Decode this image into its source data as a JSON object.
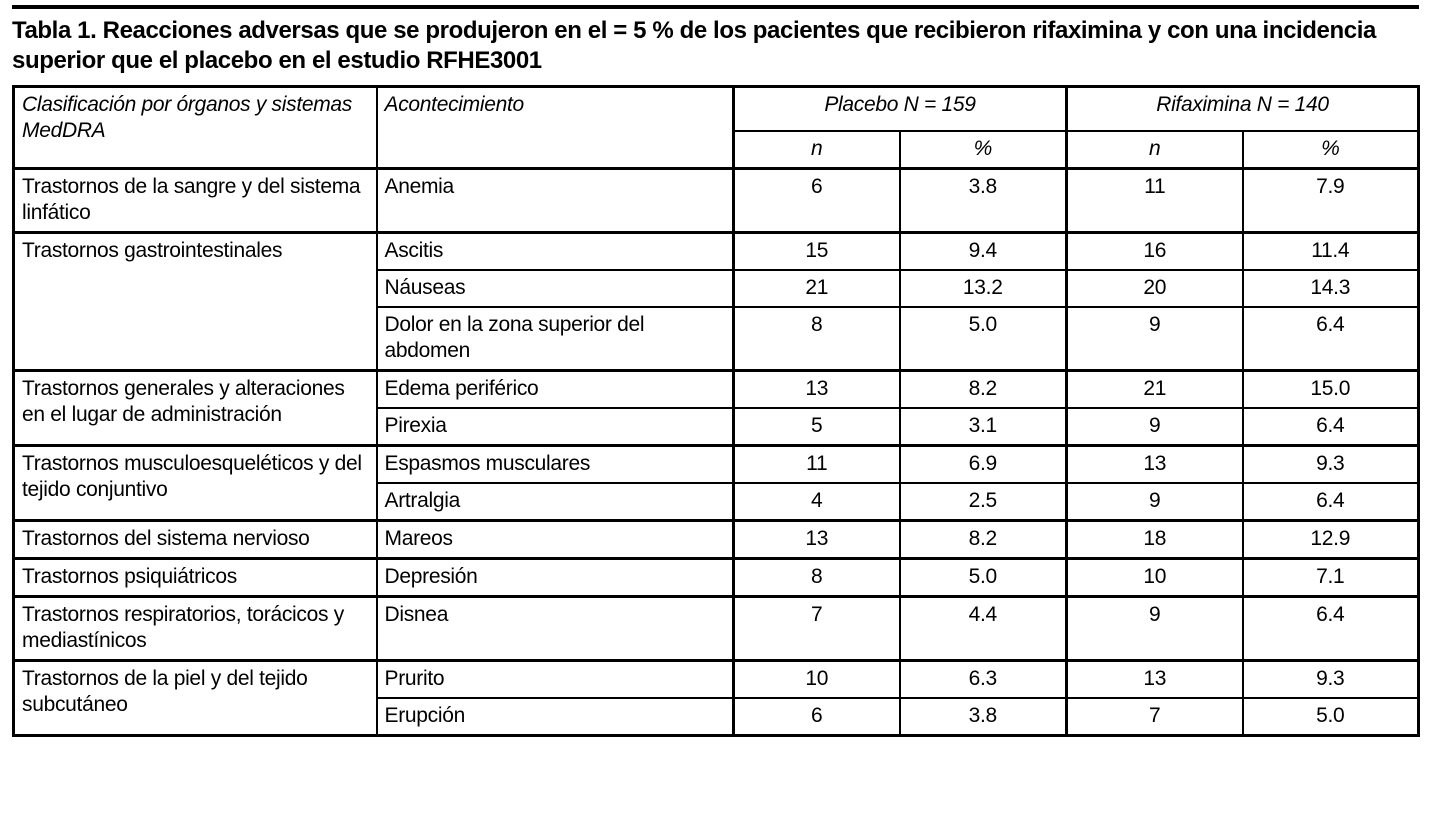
{
  "title": "Tabla 1. Reacciones adversas que se produjeron en el = 5 % de los pacientes que recibieron rifaximina y con una incidencia superior que el placebo en el estudio RFHE3001",
  "table": {
    "headers": {
      "soc": "Clasificación por órganos y sistemas MedDRA",
      "event": "Acontecimiento",
      "placebo": "Placebo N = 159",
      "rifaximina": "Rifaximina N = 140",
      "n": "n",
      "pct": "%"
    },
    "groups": [
      {
        "soc": "Trastornos de la sangre y del sistema linfático",
        "rows": [
          {
            "event": "Anemia",
            "placebo_n": "6",
            "placebo_pct": "3.8",
            "rifaximina_n": "11",
            "rifaximina_pct": "7.9"
          }
        ]
      },
      {
        "soc": "Trastornos gastrointestinales",
        "rows": [
          {
            "event": "Ascitis",
            "placebo_n": "15",
            "placebo_pct": "9.4",
            "rifaximina_n": "16",
            "rifaximina_pct": "11.4"
          },
          {
            "event": "Náuseas",
            "placebo_n": "21",
            "placebo_pct": "13.2",
            "rifaximina_n": "20",
            "rifaximina_pct": "14.3"
          },
          {
            "event": "Dolor en la zona superior del abdomen",
            "placebo_n": "8",
            "placebo_pct": "5.0",
            "rifaximina_n": "9",
            "rifaximina_pct": "6.4"
          }
        ]
      },
      {
        "soc": "Trastornos generales y alteraciones en el lugar de administración",
        "rows": [
          {
            "event": "Edema periférico",
            "placebo_n": "13",
            "placebo_pct": "8.2",
            "rifaximina_n": "21",
            "rifaximina_pct": "15.0"
          },
          {
            "event": "Pirexia",
            "placebo_n": "5",
            "placebo_pct": "3.1",
            "rifaximina_n": "9",
            "rifaximina_pct": "6.4"
          }
        ]
      },
      {
        "soc": "Trastornos musculoesqueléticos y del tejido conjuntivo",
        "rows": [
          {
            "event": "Espasmos musculares",
            "placebo_n": "11",
            "placebo_pct": "6.9",
            "rifaximina_n": "13",
            "rifaximina_pct": "9.3"
          },
          {
            "event": "Artralgia",
            "placebo_n": "4",
            "placebo_pct": "2.5",
            "rifaximina_n": "9",
            "rifaximina_pct": "6.4"
          }
        ]
      },
      {
        "soc": "Trastornos del sistema nervioso",
        "rows": [
          {
            "event": "Mareos",
            "placebo_n": "13",
            "placebo_pct": "8.2",
            "rifaximina_n": "18",
            "rifaximina_pct": "12.9"
          }
        ]
      },
      {
        "soc": "Trastornos psiquiátricos",
        "rows": [
          {
            "event": "Depresión",
            "placebo_n": "8",
            "placebo_pct": "5.0",
            "rifaximina_n": "10",
            "rifaximina_pct": "7.1"
          }
        ]
      },
      {
        "soc": "Trastornos respiratorios, torácicos y mediastínicos",
        "rows": [
          {
            "event": "Disnea",
            "placebo_n": "7",
            "placebo_pct": "4.4",
            "rifaximina_n": "9",
            "rifaximina_pct": "6.4"
          }
        ]
      },
      {
        "soc": "Trastornos de la piel y del tejido subcutáneo",
        "rows": [
          {
            "event": "Prurito",
            "placebo_n": "10",
            "placebo_pct": "6.3",
            "rifaximina_n": "13",
            "rifaximina_pct": "9.3"
          },
          {
            "event": "Erupción",
            "placebo_n": "6",
            "placebo_pct": "3.8",
            "rifaximina_n": "7",
            "rifaximina_pct": "5.0"
          }
        ]
      }
    ]
  }
}
